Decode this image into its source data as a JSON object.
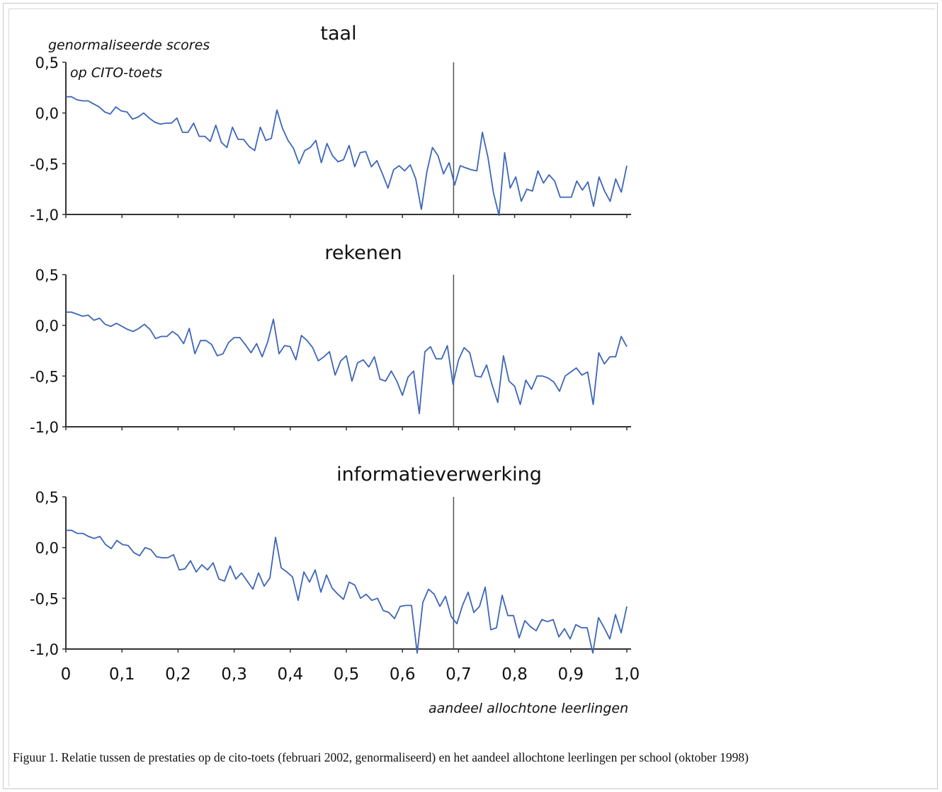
{
  "caption": "Figuur 1. Relatie tussen de prestaties op de cito-toets (februari 2002, genormaliseerd) en het aandeel allochtone leerlingen per school (oktober 1998)",
  "ylabel_note": [
    "genormaliseerde  scores",
    "op  CITO-toets"
  ],
  "xlabel": "aandeel  allochtone  leerlingen",
  "x_tick_labels": [
    "0",
    "0,1",
    "0,2",
    "0,3",
    "0,4",
    "0,5",
    "0,6",
    "0,7",
    "0,8",
    "0,9",
    "1,0"
  ],
  "y_tick_labels": [
    "0,5",
    "0,0",
    "-0,5",
    "-1,0"
  ],
  "colors": {
    "series": "#3d66b8",
    "axis": "#333333"
  },
  "chart_data": [
    {
      "type": "line",
      "title": "taal",
      "xlim": [
        0,
        1.0
      ],
      "ylim": [
        -1.0,
        0.5
      ],
      "vline": 0.7,
      "x_step": 0.01,
      "series": [
        {
          "values": [
            0.16,
            0.16,
            0.13,
            0.12,
            0.12,
            0.09,
            0.06,
            0.01,
            -0.01,
            0.06,
            0.02,
            0.01,
            -0.06,
            -0.04,
            0.0,
            -0.05,
            -0.09,
            -0.11,
            -0.1,
            -0.1,
            -0.05,
            -0.19,
            -0.19,
            -0.1,
            -0.23,
            -0.23,
            -0.28,
            -0.12,
            -0.29,
            -0.34,
            -0.14,
            -0.26,
            -0.26,
            -0.33,
            -0.37,
            -0.14,
            -0.27,
            -0.25,
            0.03,
            -0.15,
            -0.27,
            -0.35,
            -0.5,
            -0.37,
            -0.34,
            -0.27,
            -0.49,
            -0.3,
            -0.42,
            -0.48,
            -0.46,
            -0.32,
            -0.53,
            -0.39,
            -0.38,
            -0.53,
            -0.47,
            -0.6,
            -0.74,
            -0.56,
            -0.52,
            -0.57,
            -0.51,
            -0.65,
            -0.95,
            -0.58,
            -0.34,
            -0.42,
            -0.6,
            -0.49,
            -0.71,
            -0.52,
            -0.54,
            -0.56,
            -0.57,
            -0.19,
            -0.44,
            -0.79,
            -1.01,
            -0.39,
            -0.74,
            -0.63,
            -0.87,
            -0.75,
            -0.77,
            -0.57,
            -0.69,
            -0.61,
            -0.67,
            -0.83,
            -0.83,
            -0.83,
            -0.67,
            -0.76,
            -0.68,
            -0.92,
            -0.63,
            -0.77,
            -0.87,
            -0.65,
            -0.78,
            -0.52
          ]
        }
      ]
    },
    {
      "type": "line",
      "title": "rekenen",
      "xlim": [
        0,
        1.0
      ],
      "ylim": [
        -1.0,
        0.5
      ],
      "vline": 0.7,
      "x_step": 0.01,
      "series": [
        {
          "values": [
            0.13,
            0.13,
            0.11,
            0.09,
            0.1,
            0.05,
            0.07,
            0.01,
            -0.01,
            0.02,
            -0.01,
            -0.04,
            -0.06,
            -0.03,
            0.01,
            -0.04,
            -0.13,
            -0.11,
            -0.11,
            -0.06,
            -0.1,
            -0.18,
            -0.03,
            -0.28,
            -0.15,
            -0.15,
            -0.19,
            -0.3,
            -0.28,
            -0.17,
            -0.12,
            -0.12,
            -0.19,
            -0.27,
            -0.18,
            -0.31,
            -0.16,
            0.06,
            -0.28,
            -0.2,
            -0.21,
            -0.34,
            -0.1,
            -0.15,
            -0.22,
            -0.35,
            -0.31,
            -0.26,
            -0.49,
            -0.35,
            -0.3,
            -0.55,
            -0.37,
            -0.34,
            -0.41,
            -0.31,
            -0.53,
            -0.55,
            -0.45,
            -0.55,
            -0.69,
            -0.51,
            -0.45,
            -0.87,
            -0.26,
            -0.21,
            -0.33,
            -0.33,
            -0.2,
            -0.58,
            -0.34,
            -0.22,
            -0.27,
            -0.5,
            -0.51,
            -0.39,
            -0.59,
            -0.76,
            -0.3,
            -0.55,
            -0.6,
            -0.78,
            -0.54,
            -0.63,
            -0.5,
            -0.5,
            -0.52,
            -0.56,
            -0.65,
            -0.5,
            -0.46,
            -0.42,
            -0.49,
            -0.46,
            -0.78,
            -0.27,
            -0.38,
            -0.31,
            -0.31,
            -0.11,
            -0.21
          ]
        }
      ]
    },
    {
      "type": "line",
      "title": "informatieverwerking",
      "xlim": [
        0,
        1.0
      ],
      "ylim": [
        -1.0,
        0.5
      ],
      "vline": 0.7,
      "x_step": 0.01,
      "series": [
        {
          "values": [
            0.17,
            0.17,
            0.14,
            0.14,
            0.11,
            0.09,
            0.11,
            0.03,
            -0.01,
            0.07,
            0.03,
            0.02,
            -0.05,
            -0.08,
            0.0,
            -0.02,
            -0.09,
            -0.1,
            -0.1,
            -0.07,
            -0.22,
            -0.21,
            -0.13,
            -0.24,
            -0.17,
            -0.22,
            -0.15,
            -0.31,
            -0.33,
            -0.18,
            -0.31,
            -0.25,
            -0.33,
            -0.41,
            -0.25,
            -0.38,
            -0.3,
            0.1,
            -0.2,
            -0.24,
            -0.29,
            -0.52,
            -0.24,
            -0.34,
            -0.22,
            -0.44,
            -0.27,
            -0.4,
            -0.46,
            -0.51,
            -0.34,
            -0.37,
            -0.5,
            -0.46,
            -0.52,
            -0.5,
            -0.62,
            -0.64,
            -0.7,
            -0.58,
            -0.57,
            -0.57,
            -1.04,
            -0.54,
            -0.41,
            -0.46,
            -0.58,
            -0.48,
            -0.68,
            -0.75,
            -0.57,
            -0.44,
            -0.64,
            -0.58,
            -0.39,
            -0.81,
            -0.79,
            -0.47,
            -0.67,
            -0.67,
            -0.89,
            -0.72,
            -0.78,
            -0.82,
            -0.71,
            -0.73,
            -0.71,
            -0.88,
            -0.8,
            -0.9,
            -0.76,
            -0.79,
            -0.79,
            -1.04,
            -0.69,
            -0.79,
            -0.9,
            -0.66,
            -0.84,
            -0.58
          ]
        }
      ]
    }
  ]
}
